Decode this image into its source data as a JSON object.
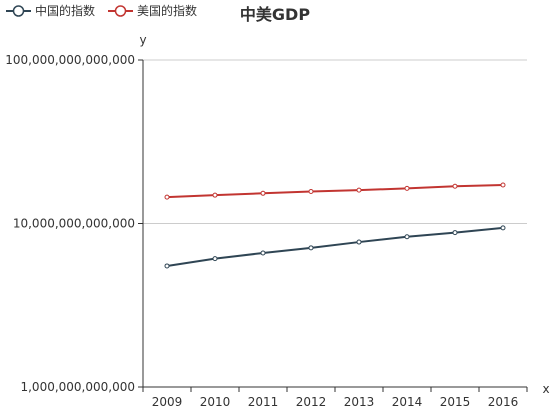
{
  "chart_data": {
    "type": "line",
    "title": "中美GDP",
    "xlabel": "x",
    "ylabel": "y",
    "y_scale": "log",
    "ylim": [
      1000000000000,
      100000000000000
    ],
    "y_ticks": [
      1000000000000,
      10000000000000,
      100000000000000
    ],
    "y_tick_labels": [
      "1,000,000,000,000",
      "10,000,000,000,000",
      "100,000,000,000,000"
    ],
    "grid": "horizontal",
    "legend_position": "top-left",
    "categories": [
      "2009",
      "2010",
      "2011",
      "2012",
      "2013",
      "2014",
      "2015",
      "2016"
    ],
    "series": [
      {
        "name": "中国的指数",
        "color": "#2f4554",
        "values": [
          5500000000000,
          6100000000000,
          6600000000000,
          7100000000000,
          7700000000000,
          8300000000000,
          8800000000000,
          9400000000000
        ]
      },
      {
        "name": "美国的指数",
        "color": "#c23531",
        "values": [
          14500000000000,
          14900000000000,
          15300000000000,
          15700000000000,
          16000000000000,
          16400000000000,
          16900000000000,
          17200000000000
        ]
      }
    ]
  }
}
